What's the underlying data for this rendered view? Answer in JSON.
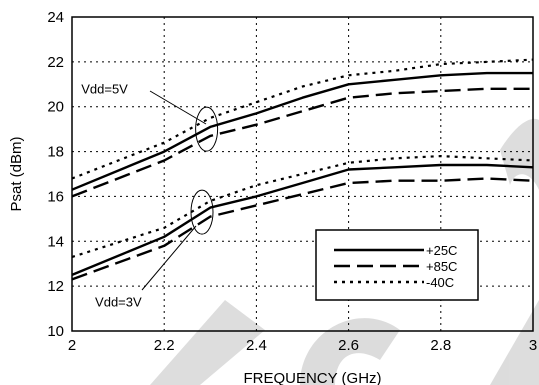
{
  "chart_data": {
    "type": "line",
    "title": "",
    "xlabel": "FREQUENCY (GHz)",
    "ylabel": "Psat (dBm)",
    "xlim": [
      2,
      3
    ],
    "ylim": [
      10,
      24
    ],
    "xticks": [
      2,
      2.2,
      2.4,
      2.6,
      2.8,
      3
    ],
    "xtick_labels": [
      "2",
      "2.2",
      "2.4",
      "2.6",
      "2.8",
      "3"
    ],
    "yticks": [
      10,
      12,
      14,
      16,
      18,
      20,
      22,
      24
    ],
    "ytick_labels": [
      "10",
      "12",
      "14",
      "16",
      "18",
      "20",
      "22",
      "24"
    ],
    "grid": true,
    "legend_position": "bottom-right",
    "annotations": [
      {
        "text": "Vdd=5V",
        "x": 2.02,
        "y": 20.6
      },
      {
        "text": "Vdd=3V",
        "x": 2.05,
        "y": 11.1
      }
    ],
    "series": [
      {
        "name": "+25C",
        "group": "Vdd=5V",
        "style": "solid",
        "x": [
          2.0,
          2.2,
          2.3,
          2.4,
          2.5,
          2.6,
          2.7,
          2.8,
          2.9,
          3.0
        ],
        "y": [
          16.3,
          18.0,
          19.1,
          19.7,
          20.4,
          21.0,
          21.2,
          21.4,
          21.5,
          21.5
        ]
      },
      {
        "name": "+85C",
        "group": "Vdd=5V",
        "style": "dashed",
        "x": [
          2.0,
          2.2,
          2.3,
          2.4,
          2.5,
          2.6,
          2.7,
          2.8,
          2.9,
          3.0
        ],
        "y": [
          16.0,
          17.6,
          18.7,
          19.2,
          19.8,
          20.4,
          20.6,
          20.7,
          20.8,
          20.8
        ]
      },
      {
        "name": "-40C",
        "group": "Vdd=5V",
        "style": "dotted",
        "x": [
          2.0,
          2.2,
          2.3,
          2.4,
          2.5,
          2.6,
          2.7,
          2.8,
          2.9,
          3.0
        ],
        "y": [
          16.8,
          18.4,
          19.5,
          20.2,
          20.9,
          21.4,
          21.6,
          21.9,
          22.0,
          22.1
        ]
      },
      {
        "name": "+25C",
        "group": "Vdd=3V",
        "style": "solid",
        "x": [
          2.0,
          2.2,
          2.3,
          2.4,
          2.5,
          2.6,
          2.7,
          2.8,
          2.9,
          3.0
        ],
        "y": [
          12.5,
          14.2,
          15.5,
          16.0,
          16.6,
          17.2,
          17.3,
          17.4,
          17.4,
          17.3
        ]
      },
      {
        "name": "+85C",
        "group": "Vdd=3V",
        "style": "dashed",
        "x": [
          2.0,
          2.2,
          2.3,
          2.4,
          2.5,
          2.6,
          2.7,
          2.8,
          2.9,
          3.0
        ],
        "y": [
          12.3,
          13.8,
          15.1,
          15.6,
          16.1,
          16.6,
          16.7,
          16.7,
          16.8,
          16.7
        ]
      },
      {
        "name": "-40C",
        "group": "Vdd=3V",
        "style": "dotted",
        "x": [
          2.0,
          2.2,
          2.3,
          2.4,
          2.5,
          2.6,
          2.7,
          2.8,
          2.9,
          3.0
        ],
        "y": [
          13.3,
          14.6,
          15.8,
          16.5,
          17.0,
          17.5,
          17.7,
          17.8,
          17.7,
          17.6
        ]
      }
    ],
    "legend": [
      {
        "label": "+25C",
        "style": "solid"
      },
      {
        "label": "+85C",
        "style": "dashed"
      },
      {
        "label": "-40C",
        "style": "dotted"
      }
    ]
  }
}
